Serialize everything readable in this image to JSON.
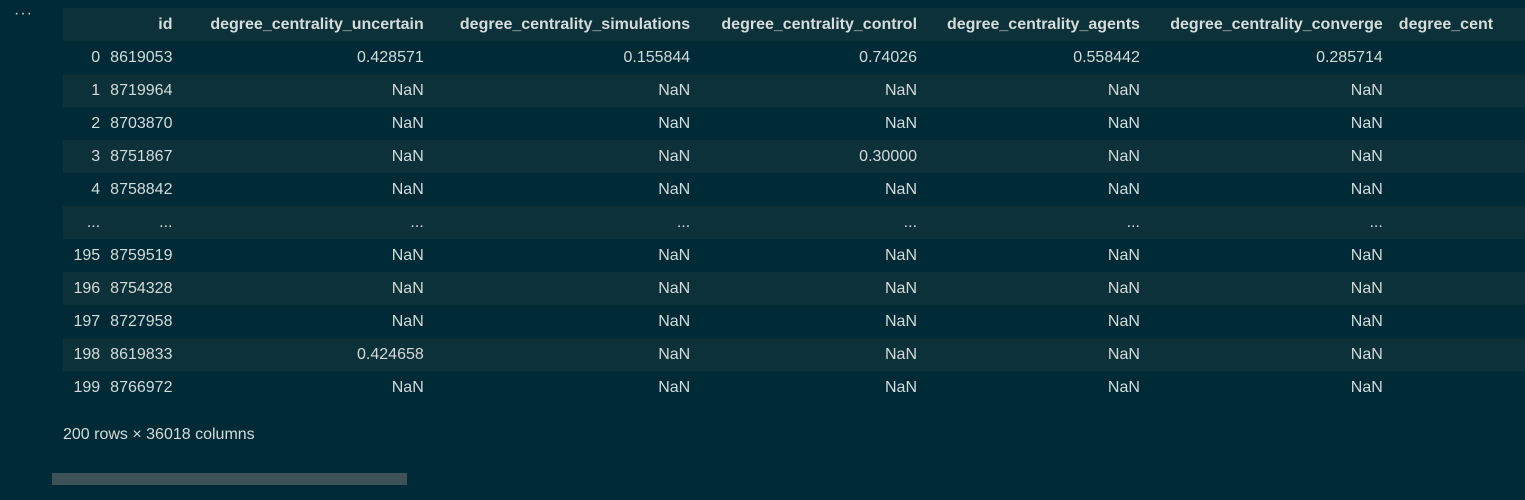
{
  "cell": {
    "menu_label": "···"
  },
  "table": {
    "columns": [
      "id",
      "degree_centrality_uncertain",
      "degree_centrality_simulations",
      "degree_centrality_control",
      "degree_centrality_agents",
      "degree_centrality_converge",
      "degree_cent"
    ],
    "rows": [
      {
        "index": "0",
        "id": "8619053",
        "v1": "0.428571",
        "v2": "0.155844",
        "v3": "0.74026",
        "v4": "0.558442",
        "v5": "0.285714",
        "v6": ""
      },
      {
        "index": "1",
        "id": "8719964",
        "v1": "NaN",
        "v2": "NaN",
        "v3": "NaN",
        "v4": "NaN",
        "v5": "NaN",
        "v6": ""
      },
      {
        "index": "2",
        "id": "8703870",
        "v1": "NaN",
        "v2": "NaN",
        "v3": "NaN",
        "v4": "NaN",
        "v5": "NaN",
        "v6": ""
      },
      {
        "index": "3",
        "id": "8751867",
        "v1": "NaN",
        "v2": "NaN",
        "v3": "0.30000",
        "v4": "NaN",
        "v5": "NaN",
        "v6": ""
      },
      {
        "index": "4",
        "id": "8758842",
        "v1": "NaN",
        "v2": "NaN",
        "v3": "NaN",
        "v4": "NaN",
        "v5": "NaN",
        "v6": ""
      },
      {
        "index": "...",
        "id": "...",
        "v1": "...",
        "v2": "...",
        "v3": "...",
        "v4": "...",
        "v5": "...",
        "v6": ""
      },
      {
        "index": "195",
        "id": "8759519",
        "v1": "NaN",
        "v2": "NaN",
        "v3": "NaN",
        "v4": "NaN",
        "v5": "NaN",
        "v6": ""
      },
      {
        "index": "196",
        "id": "8754328",
        "v1": "NaN",
        "v2": "NaN",
        "v3": "NaN",
        "v4": "NaN",
        "v5": "NaN",
        "v6": ""
      },
      {
        "index": "197",
        "id": "8727958",
        "v1": "NaN",
        "v2": "NaN",
        "v3": "NaN",
        "v4": "NaN",
        "v5": "NaN",
        "v6": ""
      },
      {
        "index": "198",
        "id": "8619833",
        "v1": "0.424658",
        "v2": "NaN",
        "v3": "NaN",
        "v4": "NaN",
        "v5": "NaN",
        "v6": ""
      },
      {
        "index": "199",
        "id": "8766972",
        "v1": "NaN",
        "v2": "NaN",
        "v3": "NaN",
        "v4": "NaN",
        "v5": "NaN",
        "v6": ""
      }
    ],
    "summary": "200 rows × 36018 columns"
  },
  "scrollbar": {
    "position_fraction": 0.0
  },
  "colors": {
    "background": "#002b36",
    "stripe": "#0c3138",
    "text": "#d3dadb",
    "scroll_thumb": "#3c5256"
  }
}
